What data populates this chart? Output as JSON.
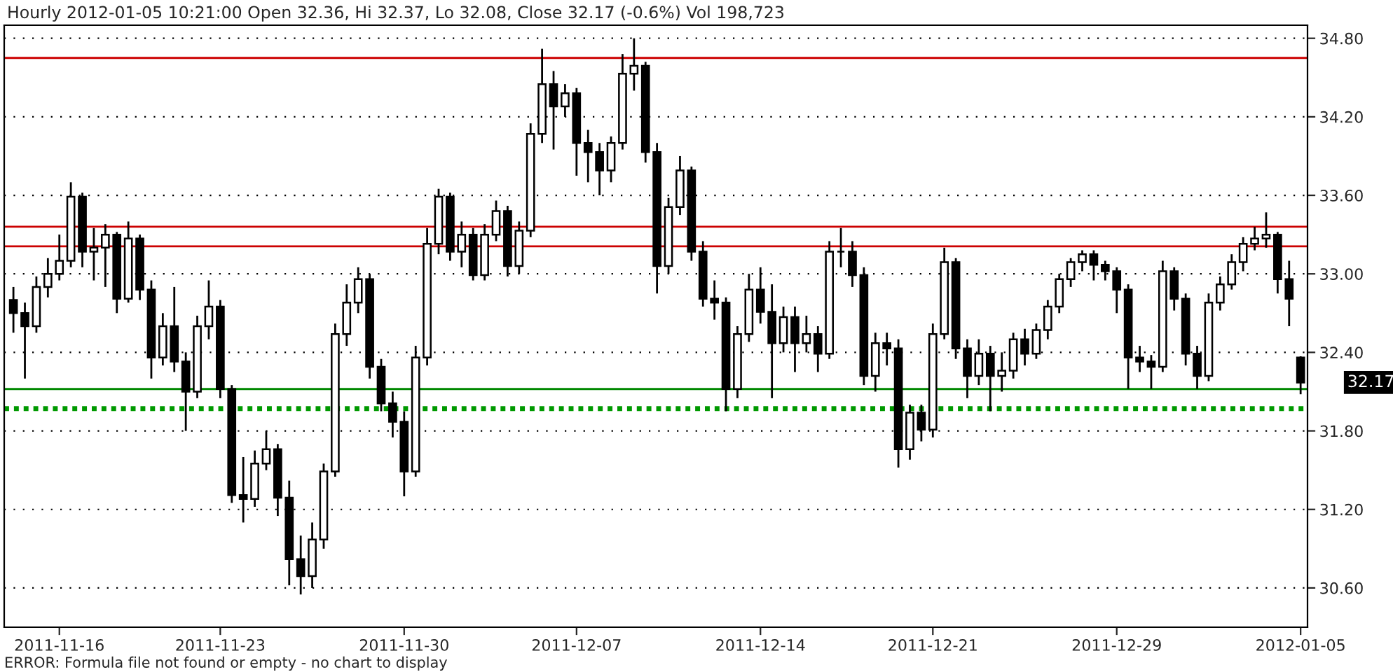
{
  "chart_data": {
    "type": "candlestick",
    "title": "Hourly 2012-01-05 10:21:00 Open 32.36, Hi 32.37, Lo 32.08, Close 32.17 (-0.6%) Vol 198,723",
    "categories": [
      null,
      null,
      null,
      null,
      "2011-11-16",
      null,
      null,
      null,
      null,
      null,
      null,
      null,
      null,
      null,
      null,
      null,
      null,
      null,
      "2011-11-23",
      null,
      null,
      null,
      null,
      null,
      null,
      null,
      null,
      null,
      null,
      null,
      null,
      null,
      null,
      null,
      "2011-11-30",
      null,
      null,
      null,
      null,
      null,
      null,
      null,
      null,
      null,
      null,
      null,
      null,
      null,
      null,
      "2011-12-07",
      null,
      null,
      null,
      null,
      null,
      null,
      null,
      null,
      null,
      null,
      null,
      null,
      null,
      null,
      null,
      "2011-12-14",
      null,
      null,
      null,
      null,
      null,
      null,
      null,
      null,
      null,
      null,
      null,
      null,
      null,
      null,
      "2011-12-21",
      null,
      null,
      null,
      null,
      null,
      null,
      null,
      null,
      null,
      null,
      null,
      null,
      null,
      null,
      null,
      "2011-12-29",
      null,
      null,
      null,
      null,
      null,
      null,
      null,
      null,
      null,
      null,
      null,
      null,
      null,
      null,
      null,
      "2012-01-05"
    ],
    "ohlc": [
      [
        32.8,
        32.9,
        32.55,
        32.7
      ],
      [
        32.7,
        32.78,
        32.2,
        32.6
      ],
      [
        32.6,
        32.98,
        32.55,
        32.9
      ],
      [
        32.9,
        33.12,
        32.82,
        33.0
      ],
      [
        33.0,
        33.3,
        32.95,
        33.1
      ],
      [
        33.1,
        33.7,
        33.05,
        33.59
      ],
      [
        33.59,
        33.62,
        33.05,
        33.17
      ],
      [
        33.17,
        33.35,
        32.95,
        33.2
      ],
      [
        33.2,
        33.38,
        32.9,
        33.3
      ],
      [
        33.3,
        33.32,
        32.7,
        32.81
      ],
      [
        32.81,
        33.4,
        32.78,
        33.27
      ],
      [
        33.27,
        33.3,
        32.8,
        32.88
      ],
      [
        32.88,
        32.95,
        32.2,
        32.36
      ],
      [
        32.36,
        32.7,
        32.3,
        32.6
      ],
      [
        32.6,
        32.9,
        32.25,
        32.33
      ],
      [
        32.33,
        32.4,
        31.8,
        32.1
      ],
      [
        32.1,
        32.68,
        32.05,
        32.6
      ],
      [
        32.6,
        32.95,
        32.5,
        32.75
      ],
      [
        32.75,
        32.8,
        32.05,
        32.12
      ],
      [
        32.12,
        32.15,
        31.25,
        31.31
      ],
      [
        31.31,
        31.6,
        31.1,
        31.28
      ],
      [
        31.28,
        31.65,
        31.22,
        31.55
      ],
      [
        31.55,
        31.8,
        31.5,
        31.66
      ],
      [
        31.66,
        31.7,
        31.15,
        31.29
      ],
      [
        31.29,
        31.42,
        30.62,
        30.82
      ],
      [
        30.82,
        31.0,
        30.55,
        30.69
      ],
      [
        30.69,
        31.1,
        30.6,
        30.97
      ],
      [
        30.97,
        31.55,
        30.9,
        31.49
      ],
      [
        31.49,
        32.62,
        31.45,
        32.54
      ],
      [
        32.54,
        32.92,
        32.45,
        32.78
      ],
      [
        32.78,
        33.05,
        32.7,
        32.96
      ],
      [
        32.96,
        33.0,
        32.2,
        32.29
      ],
      [
        32.29,
        32.35,
        31.95,
        32.01
      ],
      [
        32.01,
        32.1,
        31.75,
        31.87
      ],
      [
        31.87,
        31.95,
        31.3,
        31.49
      ],
      [
        31.49,
        32.45,
        31.45,
        32.36
      ],
      [
        32.36,
        33.35,
        32.3,
        33.23
      ],
      [
        33.23,
        33.65,
        33.15,
        33.59
      ],
      [
        33.59,
        33.62,
        33.1,
        33.17
      ],
      [
        33.17,
        33.4,
        33.05,
        33.3
      ],
      [
        33.3,
        33.35,
        32.95,
        32.99
      ],
      [
        32.99,
        33.38,
        32.95,
        33.3
      ],
      [
        33.3,
        33.56,
        33.25,
        33.48
      ],
      [
        33.48,
        33.52,
        32.98,
        33.06
      ],
      [
        33.06,
        33.4,
        33.0,
        33.33
      ],
      [
        33.33,
        34.15,
        33.28,
        34.07
      ],
      [
        34.07,
        34.72,
        34.0,
        34.45
      ],
      [
        34.45,
        34.55,
        33.95,
        34.28
      ],
      [
        34.28,
        34.45,
        34.2,
        34.38
      ],
      [
        34.38,
        34.42,
        33.75,
        34.0
      ],
      [
        34.0,
        34.1,
        33.7,
        33.93
      ],
      [
        33.93,
        34.0,
        33.6,
        33.79
      ],
      [
        33.79,
        34.05,
        33.7,
        34.0
      ],
      [
        34.0,
        34.68,
        33.95,
        34.53
      ],
      [
        34.53,
        34.8,
        34.4,
        34.59
      ],
      [
        34.59,
        34.62,
        33.85,
        33.93
      ],
      [
        33.93,
        34.0,
        32.85,
        33.06
      ],
      [
        33.06,
        33.58,
        33.0,
        33.51
      ],
      [
        33.51,
        33.9,
        33.45,
        33.79
      ],
      [
        33.79,
        33.82,
        33.1,
        33.17
      ],
      [
        33.17,
        33.25,
        32.75,
        32.81
      ],
      [
        32.81,
        32.95,
        32.65,
        32.78
      ],
      [
        32.78,
        32.82,
        31.95,
        32.12
      ],
      [
        32.12,
        32.6,
        32.05,
        32.54
      ],
      [
        32.54,
        33.0,
        32.48,
        32.88
      ],
      [
        32.88,
        33.05,
        32.62,
        32.71
      ],
      [
        32.71,
        32.92,
        32.05,
        32.47
      ],
      [
        32.47,
        32.75,
        32.4,
        32.67
      ],
      [
        32.67,
        32.75,
        32.25,
        32.47
      ],
      [
        32.47,
        32.68,
        32.4,
        32.54
      ],
      [
        32.54,
        32.6,
        32.25,
        32.39
      ],
      [
        32.39,
        33.25,
        32.35,
        33.17
      ],
      [
        33.17,
        33.35,
        33.05,
        33.17
      ],
      [
        33.17,
        33.25,
        32.9,
        32.99
      ],
      [
        32.99,
        33.05,
        32.15,
        32.22
      ],
      [
        32.22,
        32.55,
        32.1,
        32.47
      ],
      [
        32.47,
        32.55,
        32.3,
        32.43
      ],
      [
        32.43,
        32.5,
        31.52,
        31.66
      ],
      [
        31.66,
        32.0,
        31.58,
        31.94
      ],
      [
        31.94,
        32.0,
        31.72,
        31.81
      ],
      [
        31.81,
        32.62,
        31.75,
        32.54
      ],
      [
        32.54,
        33.2,
        32.5,
        33.09
      ],
      [
        33.09,
        33.12,
        32.35,
        32.43
      ],
      [
        32.43,
        32.5,
        32.05,
        32.22
      ],
      [
        32.22,
        32.5,
        32.15,
        32.39
      ],
      [
        32.39,
        32.45,
        31.95,
        32.22
      ],
      [
        32.22,
        32.4,
        32.1,
        32.26
      ],
      [
        32.26,
        32.55,
        32.2,
        32.5
      ],
      [
        32.5,
        32.58,
        32.3,
        32.39
      ],
      [
        32.39,
        32.62,
        32.35,
        32.57
      ],
      [
        32.57,
        32.8,
        32.5,
        32.75
      ],
      [
        32.75,
        33.0,
        32.7,
        32.96
      ],
      [
        32.96,
        33.12,
        32.9,
        33.09
      ],
      [
        33.09,
        33.18,
        33.02,
        33.15
      ],
      [
        33.15,
        33.18,
        32.95,
        33.07
      ],
      [
        33.07,
        33.1,
        32.95,
        33.02
      ],
      [
        33.02,
        33.05,
        32.7,
        32.88
      ],
      [
        32.88,
        32.92,
        32.12,
        32.36
      ],
      [
        32.36,
        32.45,
        32.25,
        32.33
      ],
      [
        32.33,
        32.38,
        32.12,
        32.29
      ],
      [
        32.29,
        33.1,
        32.25,
        33.02
      ],
      [
        33.02,
        33.05,
        32.72,
        32.81
      ],
      [
        32.81,
        32.85,
        32.3,
        32.39
      ],
      [
        32.39,
        32.45,
        32.12,
        32.22
      ],
      [
        32.22,
        32.85,
        32.18,
        32.78
      ],
      [
        32.78,
        32.98,
        32.72,
        32.92
      ],
      [
        32.92,
        33.15,
        32.88,
        33.09
      ],
      [
        33.09,
        33.28,
        33.02,
        33.23
      ],
      [
        33.23,
        33.36,
        33.18,
        33.27
      ],
      [
        33.27,
        33.47,
        33.2,
        33.3
      ],
      [
        33.3,
        33.32,
        32.85,
        32.96
      ],
      [
        32.96,
        33.1,
        32.6,
        32.81
      ],
      [
        32.36,
        32.37,
        32.08,
        32.17
      ]
    ],
    "ylim": [
      30.3,
      34.9
    ],
    "yticks": [
      {
        "value": 30.6,
        "label": "30.60"
      },
      {
        "value": 31.2,
        "label": "31.20"
      },
      {
        "value": 31.8,
        "label": "31.80"
      },
      {
        "value": 32.4,
        "label": "32.40"
      },
      {
        "value": 33.0,
        "label": "33.00"
      },
      {
        "value": 33.6,
        "label": "33.60"
      },
      {
        "value": 34.2,
        "label": "34.20"
      },
      {
        "value": 34.8,
        "label": "34.80"
      }
    ],
    "grid": "y",
    "ref_lines": [
      {
        "axis": "y",
        "value": 34.65,
        "color": "#cc0000",
        "line_style": "solid"
      },
      {
        "axis": "y",
        "value": 33.36,
        "color": "#cc0000",
        "line_style": "solid"
      },
      {
        "axis": "y",
        "value": 33.21,
        "color": "#cc0000",
        "line_style": "solid"
      },
      {
        "axis": "y",
        "value": 32.12,
        "color": "#008800",
        "line_style": "solid"
      },
      {
        "axis": "y",
        "value": 31.97,
        "color": "#009900",
        "line_style": "dotted"
      }
    ],
    "annotations": [
      {
        "text": "32.17",
        "x": "2012-01-05",
        "y": 32.17
      },
      "ERROR: Formula file not found or empty - no chart to display"
    ]
  }
}
